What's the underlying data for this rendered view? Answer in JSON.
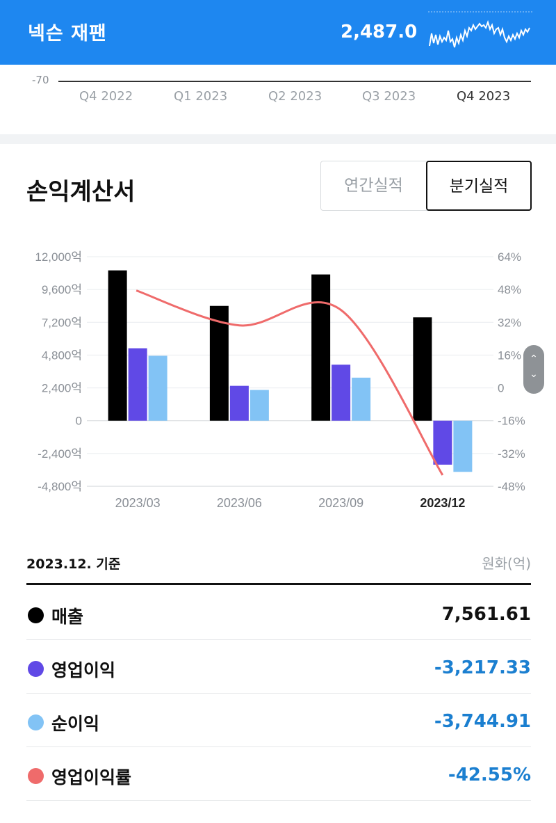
{
  "header": {
    "stock_name": "넥슨 재팬",
    "price": "2,487.0",
    "sparkline_icon": "sparkline-chart-icon"
  },
  "period_strip": {
    "axis_min_label": "-70",
    "quarters": [
      "Q4 2022",
      "Q1 2023",
      "Q2 2023",
      "Q3 2023",
      "Q4 2023"
    ],
    "active_quarter": "Q4 2023"
  },
  "section": {
    "title": "손익계산서",
    "toggle": {
      "annual": "연간실적",
      "quarterly": "분기실적",
      "selected": "분기실적"
    }
  },
  "chart_data": {
    "type": "bar",
    "categories": [
      "2023/03",
      "2023/06",
      "2023/09",
      "2023/12"
    ],
    "active_category": "2023/12",
    "series": [
      {
        "name": "매출",
        "type": "bar",
        "axis": "left",
        "color": "#000000",
        "values": [
          11000,
          8400,
          10700,
          7561.61
        ]
      },
      {
        "name": "영업이익",
        "type": "bar",
        "axis": "left",
        "color": "#6049e6",
        "values": [
          5300,
          2550,
          4100,
          -3217.33
        ]
      },
      {
        "name": "순이익",
        "type": "bar",
        "axis": "left",
        "color": "#82c3f5",
        "values": [
          4750,
          2250,
          3150,
          -3744.91
        ]
      },
      {
        "name": "영업이익률",
        "type": "line",
        "axis": "right",
        "color": "#ef6b6b",
        "values": [
          47.5,
          30.5,
          38,
          -42.55
        ]
      }
    ],
    "y_left": {
      "min": -4800,
      "max": 12000,
      "ticks": [
        "12,000억",
        "9,600억",
        "7,200억",
        "4,800억",
        "2,400억",
        "0",
        "-2,400억",
        "-4,800억"
      ],
      "tick_values": [
        12000,
        9600,
        7200,
        4800,
        2400,
        0,
        -2400,
        -4800
      ]
    },
    "y_right": {
      "min": -48,
      "max": 64,
      "ticks": [
        "64%",
        "48%",
        "32%",
        "16%",
        "0",
        "-16%",
        "-32%",
        "-48%"
      ]
    }
  },
  "scroll_control": {
    "up": "⌃",
    "down": "⌄"
  },
  "summary": {
    "basis": "2023.12. 기준",
    "unit": "원화(억)",
    "rows": [
      {
        "label": "매출",
        "value": "7,561.61",
        "dot_color": "#000000",
        "value_color": "#111111"
      },
      {
        "label": "영업이익",
        "value": "-3,217.33",
        "dot_color": "#6049e6",
        "value_color": "#1b7fd0"
      },
      {
        "label": "순이익",
        "value": "-3,744.91",
        "dot_color": "#82c3f5",
        "value_color": "#1b7fd0"
      },
      {
        "label": "영업이익률",
        "value": "-42.55%",
        "dot_color": "#ef6b6b",
        "value_color": "#1b7fd0"
      }
    ]
  }
}
